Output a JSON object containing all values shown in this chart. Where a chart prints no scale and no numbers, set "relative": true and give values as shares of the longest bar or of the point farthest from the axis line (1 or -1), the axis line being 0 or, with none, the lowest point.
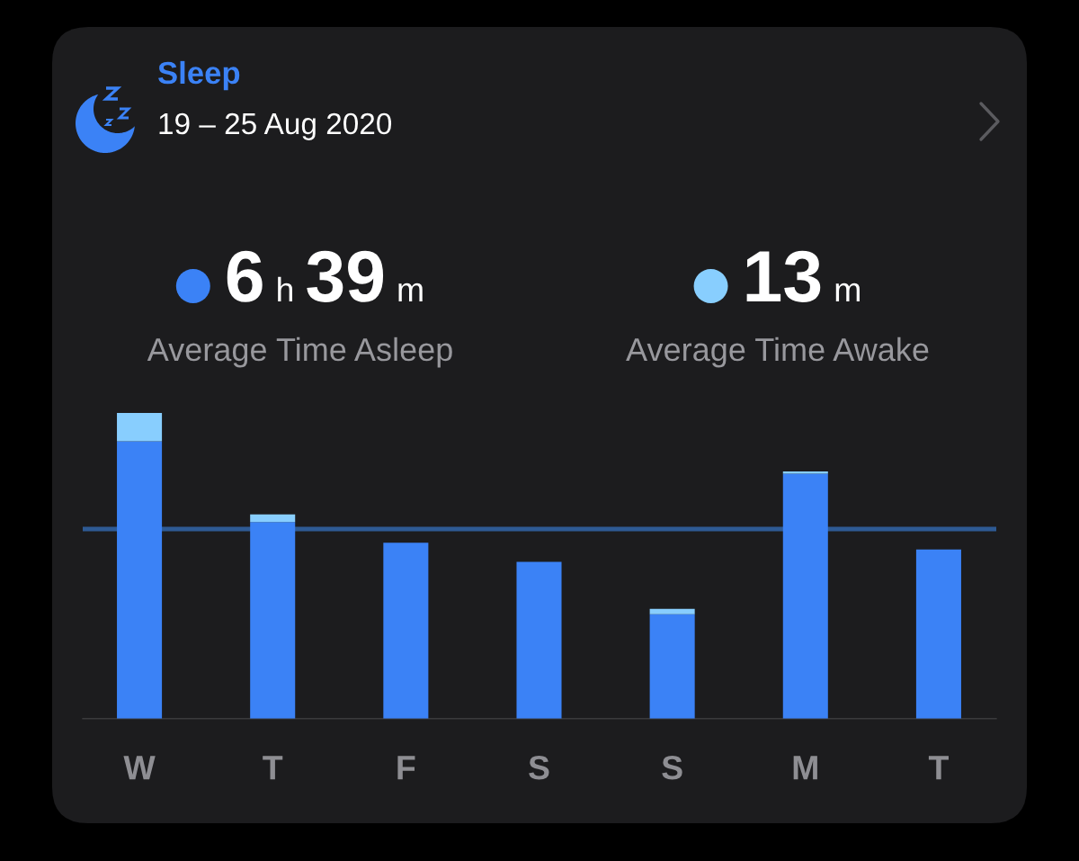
{
  "chart_data": {
    "type": "bar",
    "title": "Sleep",
    "subtitle": "19 – 25 Aug 2020",
    "categories": [
      "W",
      "T",
      "F",
      "S",
      "S",
      "M",
      "T"
    ],
    "stacked": true,
    "relative": true,
    "series": [
      {
        "color": "#3b82f6",
        "values": [
          0.907,
          0.643,
          0.575,
          0.513,
          0.341,
          0.801,
          0.553
        ]
      },
      {
        "color": "#88cefe",
        "values": [
          0.093,
          0.025,
          null,
          null,
          0.018,
          0.008,
          null
        ]
      }
    ],
    "ref_lines": [
      {
        "axis": "y",
        "value": 0.62,
        "color": "#2e5a94"
      }
    ],
    "annotations": [
      "6 h 39 m",
      "Average Time Asleep",
      "13 m",
      "Average Time Awake"
    ]
  }
}
